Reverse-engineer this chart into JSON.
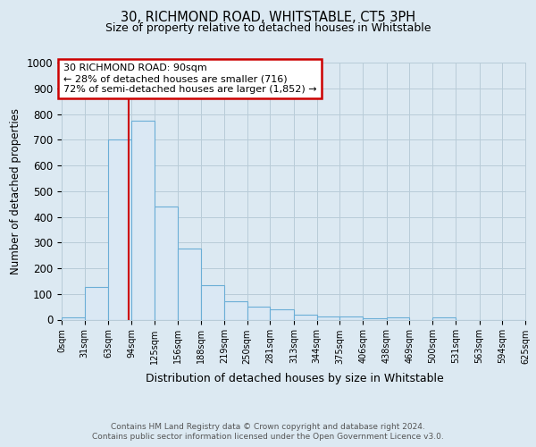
{
  "title1": "30, RICHMOND ROAD, WHITSTABLE, CT5 3PH",
  "title2": "Size of property relative to detached houses in Whitstable",
  "xlabel": "Distribution of detached houses by size in Whitstable",
  "ylabel": "Number of detached properties",
  "footer1": "Contains HM Land Registry data © Crown copyright and database right 2024.",
  "footer2": "Contains public sector information licensed under the Open Government Licence v3.0.",
  "annotation_line1": "30 RICHMOND ROAD: 90sqm",
  "annotation_line2": "← 28% of detached houses are smaller (716)",
  "annotation_line3": "72% of semi-detached houses are larger (1,852) →",
  "red_line_x": 90,
  "bin_edges": [
    0,
    31,
    63,
    94,
    125,
    156,
    188,
    219,
    250,
    281,
    313,
    344,
    375,
    406,
    438,
    469,
    500,
    531,
    563,
    594,
    625
  ],
  "bar_heights": [
    8,
    127,
    700,
    775,
    440,
    275,
    133,
    70,
    50,
    40,
    20,
    13,
    13,
    5,
    8,
    0,
    8,
    0,
    0,
    0
  ],
  "bar_color": "#dae8f4",
  "bar_edge_color": "#6baed6",
  "red_line_color": "#cc0000",
  "annotation_box_edge_color": "#cc0000",
  "ylim": [
    0,
    1000
  ],
  "yticks": [
    0,
    100,
    200,
    300,
    400,
    500,
    600,
    700,
    800,
    900,
    1000
  ],
  "tick_labels": [
    "0sqm",
    "31sqm",
    "63sqm",
    "94sqm",
    "125sqm",
    "156sqm",
    "188sqm",
    "219sqm",
    "250sqm",
    "281sqm",
    "313sqm",
    "344sqm",
    "375sqm",
    "406sqm",
    "438sqm",
    "469sqm",
    "500sqm",
    "531sqm",
    "563sqm",
    "594sqm",
    "625sqm"
  ],
  "grid_color": "#b8ccd8",
  "plot_bg_color": "#dce9f2",
  "fig_bg_color": "#dce9f2"
}
